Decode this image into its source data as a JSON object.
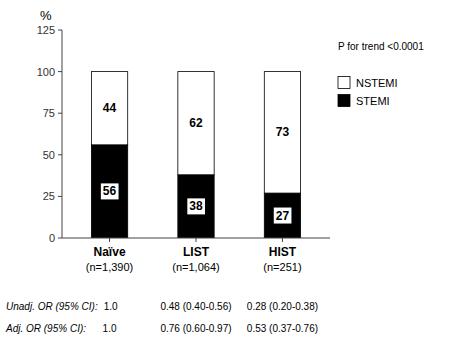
{
  "chart_data": {
    "type": "bar",
    "stacked": true,
    "ylabel": "%",
    "categories": [
      "Naïve",
      "LIST",
      "HIST"
    ],
    "category_notes": [
      "(n=1,390)",
      "(n=1,064)",
      "(n=251)"
    ],
    "series": [
      {
        "name": "STEMI",
        "color": "#000000",
        "values": [
          56,
          38,
          27
        ]
      },
      {
        "name": "NSTEMI",
        "color": "#ffffff",
        "values": [
          44,
          62,
          73
        ]
      }
    ],
    "ylim": [
      0,
      125
    ],
    "yticks": [
      0,
      25,
      50,
      75,
      100,
      125
    ],
    "grid": false,
    "legend": "right",
    "data_labels": true,
    "annotations": [
      "P for trend <0.0001"
    ],
    "or_rows": [
      {
        "label": "Unadj. OR (95% CI):",
        "values": [
          "1.0",
          "0.48 (0.40-0.56)",
          "0.28 (0.20-0.38)"
        ]
      },
      {
        "label": "Adj. OR (95% CI):",
        "values": [
          "1.0",
          "0.76 (0.60-0.97)",
          "0.53 (0.37-0.76)"
        ]
      }
    ]
  }
}
